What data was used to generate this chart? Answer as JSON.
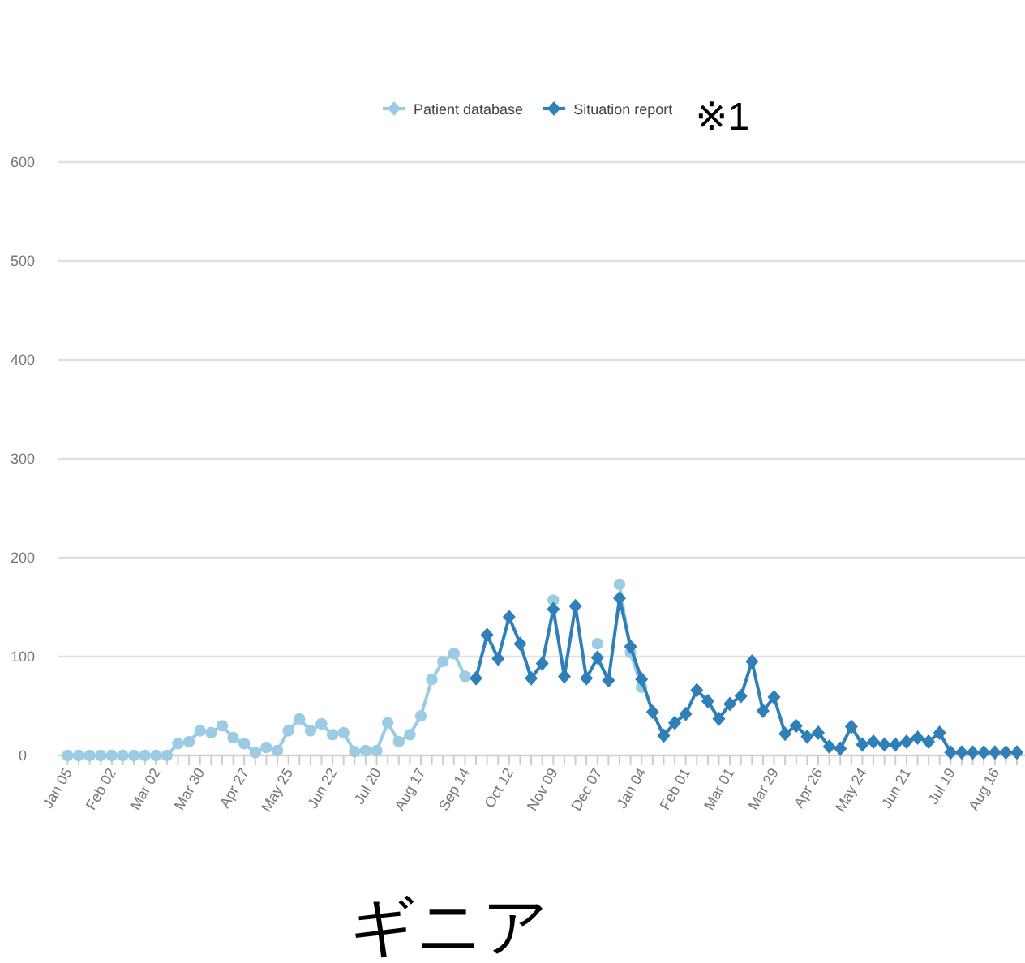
{
  "chart_data": {
    "type": "line",
    "categories": [
      "Jan 05",
      null,
      null,
      null,
      "Feb 02",
      null,
      null,
      null,
      "Mar 02",
      null,
      null,
      null,
      "Mar 30",
      null,
      null,
      null,
      "Apr 27",
      null,
      null,
      null,
      "May 25",
      null,
      null,
      null,
      "Jun 22",
      null,
      null,
      null,
      "Jul 20",
      null,
      null,
      null,
      "Aug 17",
      null,
      null,
      null,
      "Sep 14",
      null,
      null,
      null,
      "Oct 12",
      null,
      null,
      null,
      "Nov 09",
      null,
      null,
      null,
      "Dec 07",
      null,
      null,
      null,
      "Jan 04",
      null,
      null,
      null,
      "Feb 01",
      null,
      null,
      null,
      "Mar 01",
      null,
      null,
      null,
      "Mar 29",
      null,
      null,
      null,
      "Apr 26",
      null,
      null,
      null,
      "May 24",
      null,
      null,
      null,
      "Jun 21",
      null,
      null,
      null,
      "Jul 19",
      null,
      null,
      null,
      "Aug 16",
      null,
      null
    ],
    "series": [
      {
        "name": "Patient database",
        "color": "#9ccbe4",
        "marker": "circle",
        "values": [
          0,
          0,
          0,
          0,
          0,
          0,
          0,
          0,
          0,
          0,
          12,
          14,
          25,
          23,
          30,
          18,
          12,
          3,
          8,
          5,
          25,
          37,
          25,
          32,
          21,
          23,
          4,
          5,
          5,
          33,
          14,
          21,
          40,
          77,
          95,
          103,
          80,
          null,
          null,
          null,
          null,
          null,
          null,
          null,
          157,
          null,
          null,
          null,
          113,
          null,
          173,
          104,
          69,
          null,
          null,
          null,
          null,
          null,
          null,
          null,
          null,
          null,
          null,
          null,
          null,
          null,
          null,
          null,
          null,
          null,
          null,
          null,
          null,
          null,
          null,
          null,
          null,
          null,
          null,
          null,
          null,
          null,
          null,
          null,
          null,
          null,
          null
        ]
      },
      {
        "name": "Situation report",
        "color": "#2f7fb8",
        "marker": "diamond",
        "values": [
          null,
          null,
          null,
          null,
          null,
          null,
          null,
          null,
          null,
          null,
          null,
          null,
          null,
          null,
          null,
          null,
          null,
          null,
          null,
          null,
          null,
          null,
          null,
          null,
          null,
          null,
          null,
          null,
          null,
          null,
          null,
          null,
          null,
          null,
          null,
          null,
          null,
          78,
          122,
          98,
          140,
          113,
          78,
          93,
          148,
          80,
          151,
          78,
          99,
          76,
          159,
          110,
          77,
          44,
          20,
          33,
          42,
          66,
          55,
          37,
          52,
          60,
          95,
          45,
          59,
          22,
          30,
          19,
          23,
          9,
          7,
          29,
          11,
          14,
          11,
          11,
          14,
          18,
          14,
          23,
          3,
          3,
          3,
          3,
          3,
          3,
          3
        ]
      }
    ],
    "ylim": [
      0,
      600
    ],
    "yticks": [
      0,
      100,
      200,
      300,
      400,
      500,
      600
    ],
    "grid": "y",
    "legend": "top",
    "annotations": [
      "※1",
      "ギニア"
    ]
  }
}
